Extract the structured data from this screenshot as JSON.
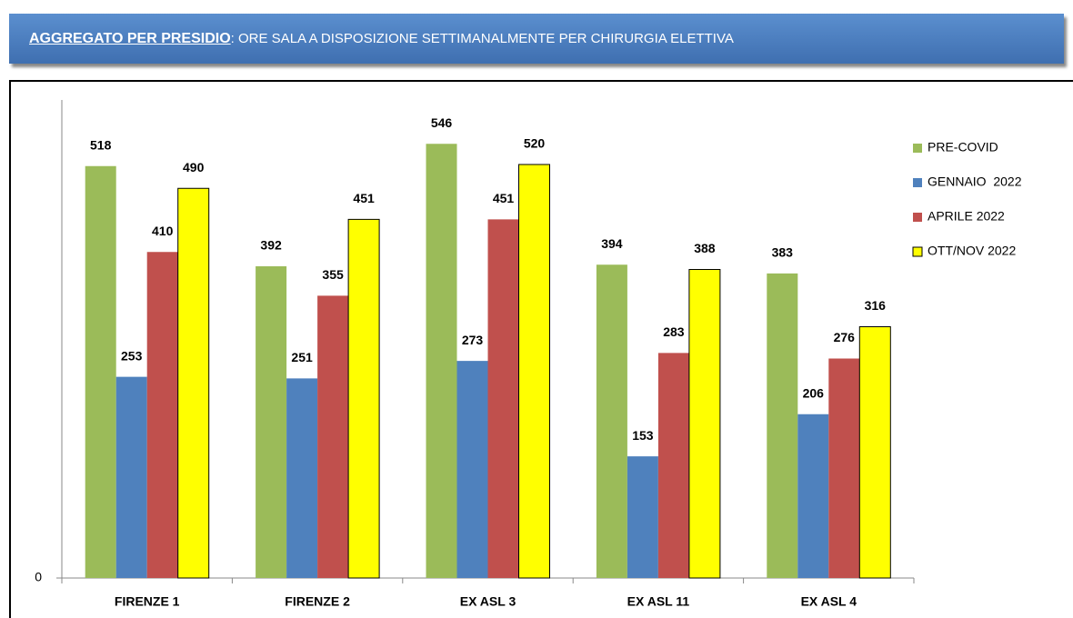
{
  "chart_data": {
    "type": "bar",
    "title": {
      "lead": "AGGREGATO PER PRESIDIO",
      "rest": ": ORE SALA A DISPOSIZIONE SETTIMANALMENTE PER CHIRURGIA ELETTIVA"
    },
    "categories": [
      "FIRENZE 1",
      "FIRENZE 2",
      "EX ASL 3",
      "EX ASL 11",
      "EX ASL 4"
    ],
    "series": [
      {
        "name": "PRE-COVID",
        "color": "#9bbb59",
        "values": [
          518,
          392,
          546,
          394,
          383
        ]
      },
      {
        "name": "GENNAIO  2022",
        "color": "#4f81bd",
        "values": [
          253,
          251,
          273,
          153,
          206
        ]
      },
      {
        "name": "APRILE 2022",
        "color": "#c0504d",
        "values": [
          410,
          355,
          451,
          283,
          276
        ]
      },
      {
        "name": "OTT/NOV 2022",
        "color": "#ffff00",
        "values": [
          490,
          451,
          520,
          388,
          316
        ]
      }
    ],
    "ylim": [
      0,
      600
    ],
    "yticks": [
      0
    ],
    "grid": false,
    "legend": "right"
  }
}
